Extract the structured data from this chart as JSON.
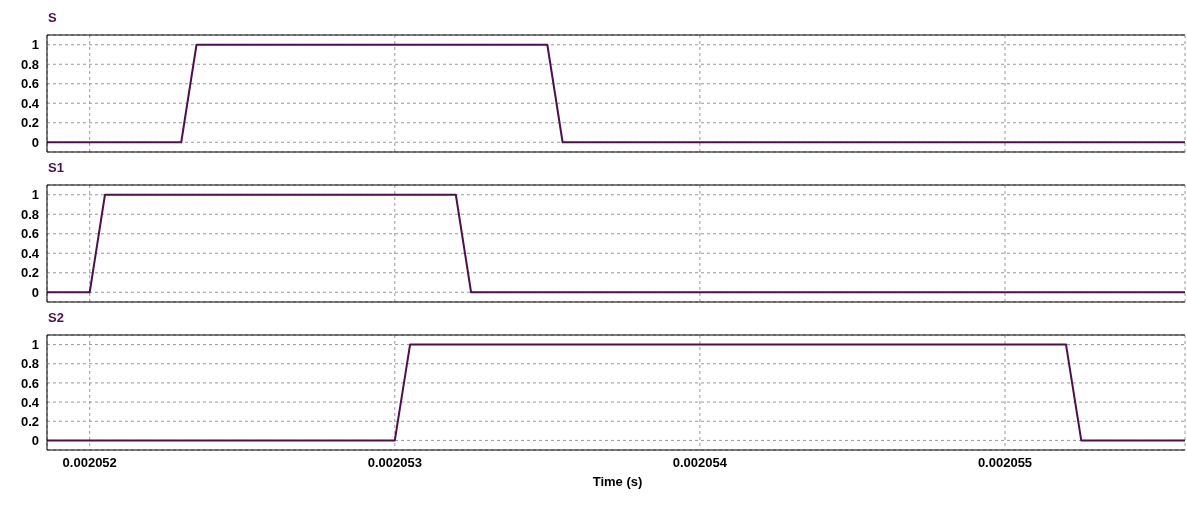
{
  "chart_data": [
    {
      "type": "line",
      "title": "S",
      "x": [
        0.00205186,
        0.0020523,
        0.00205235,
        0.0020535,
        0.00205355,
        0.00205559
      ],
      "series": [
        {
          "color": "#4f0f4f",
          "values": [
            0,
            0,
            1,
            1,
            0,
            0
          ]
        }
      ],
      "xlim": [
        0.00205186,
        0.00205559
      ],
      "xticks": [
        0.002052,
        0.002053,
        0.002054,
        0.002055
      ],
      "ylim": [
        -0.1,
        1.1
      ],
      "yticks": [
        0,
        0.2,
        0.4,
        0.6,
        0.8,
        1
      ],
      "grid": true,
      "tick_labels": "y"
    },
    {
      "type": "line",
      "title": "S1",
      "x": [
        0.00205186,
        0.002052,
        0.00205205,
        0.0020532,
        0.00205325,
        0.00205559
      ],
      "series": [
        {
          "color": "#4f0f4f",
          "values": [
            0,
            0,
            1,
            1,
            0,
            0
          ]
        }
      ],
      "xlim": [
        0.00205186,
        0.00205559
      ],
      "xticks": [
        0.002052,
        0.002053,
        0.002054,
        0.002055
      ],
      "ylim": [
        -0.1,
        1.1
      ],
      "yticks": [
        0,
        0.2,
        0.4,
        0.6,
        0.8,
        1
      ],
      "grid": true,
      "tick_labels": "y"
    },
    {
      "type": "line",
      "title": "S2",
      "xlabel": "Time (s)",
      "x": [
        0.00205186,
        0.002053,
        0.00205305,
        0.0020552,
        0.00205525,
        0.00205559
      ],
      "series": [
        {
          "color": "#4f0f4f",
          "values": [
            0,
            0,
            1,
            1,
            0,
            0
          ]
        }
      ],
      "xlim": [
        0.00205186,
        0.00205559
      ],
      "xticks": [
        0.002052,
        0.002053,
        0.002054,
        0.002055
      ],
      "ylim": [
        -0.1,
        1.1
      ],
      "yticks": [
        0,
        0.2,
        0.4,
        0.6,
        0.8,
        1
      ],
      "grid": true
    }
  ]
}
